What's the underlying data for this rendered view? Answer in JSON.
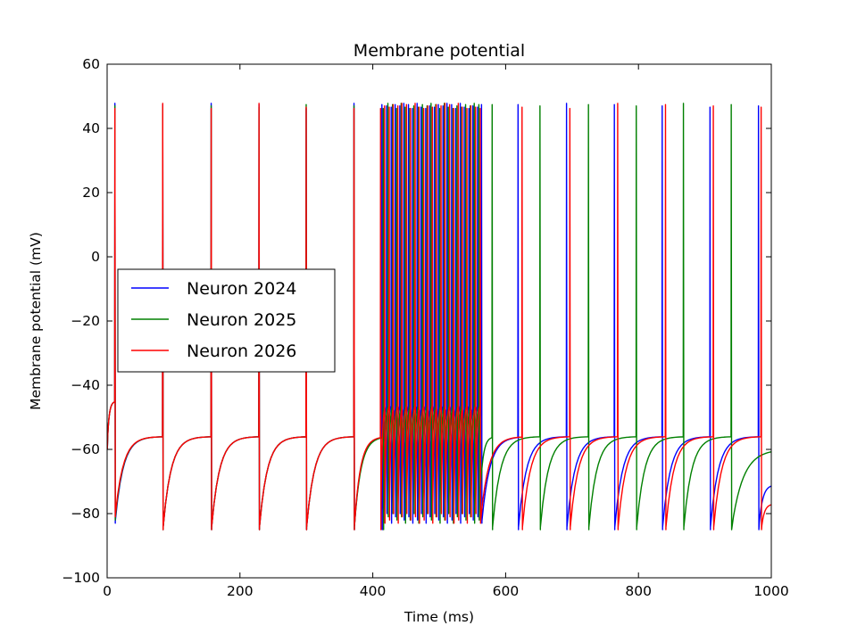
{
  "chart_data": {
    "type": "line",
    "title": "Membrane potential",
    "xlabel": "Time (ms)",
    "ylabel": "Membrane potential (mV)",
    "xlim": [
      0,
      1000
    ],
    "ylim": [
      -100,
      60
    ],
    "xticks": [
      0,
      200,
      400,
      600,
      800,
      1000
    ],
    "yticks": [
      -100,
      -80,
      -60,
      -40,
      -20,
      0,
      20,
      40,
      60
    ],
    "legend_position": "center-left",
    "grid": false,
    "model": {
      "resting_mV": -60,
      "reset_mV": -85,
      "peak_mV": 47
    },
    "series": [
      {
        "name": "Neuron 2024",
        "color": "#0000ff",
        "spike_times_ms": [
          12,
          84,
          157,
          229,
          300,
          372,
          414,
          421,
          428,
          434,
          441,
          447,
          454,
          460,
          467,
          473,
          480,
          486,
          493,
          499,
          506,
          512,
          519,
          525,
          532,
          538,
          545,
          551,
          558,
          564,
          619,
          692,
          764,
          836,
          908,
          981
        ],
        "end_value_mV": -71
      },
      {
        "name": "Neuron 2025",
        "color": "#008000",
        "spike_times_ms": [
          12,
          84,
          157,
          229,
          300,
          372,
          416,
          423,
          430,
          436,
          443,
          449,
          456,
          462,
          469,
          475,
          482,
          488,
          495,
          501,
          508,
          514,
          521,
          527,
          534,
          540,
          547,
          553,
          560,
          580,
          652,
          725,
          797,
          868,
          940
        ],
        "end_value_mV": -60
      },
      {
        "name": "Neuron 2026",
        "color": "#ff0000",
        "spike_times_ms": [
          12,
          84,
          157,
          229,
          300,
          372,
          412,
          418,
          425,
          431,
          438,
          444,
          451,
          457,
          464,
          470,
          477,
          483,
          490,
          496,
          503,
          509,
          516,
          522,
          529,
          535,
          542,
          548,
          555,
          562,
          625,
          697,
          769,
          841,
          913,
          985
        ],
        "end_value_mV": -77
      }
    ]
  }
}
